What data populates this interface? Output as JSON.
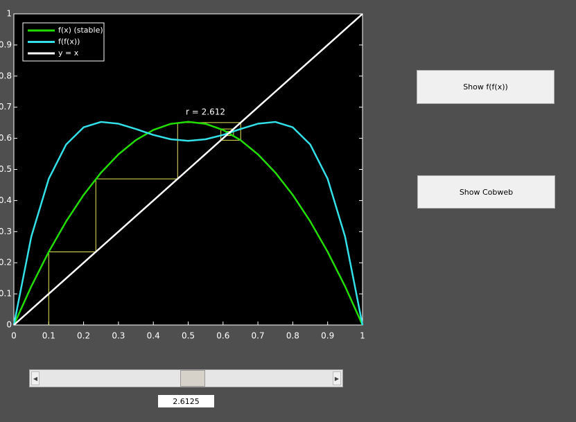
{
  "chart_data": {
    "type": "line",
    "annotation": "r = 2.612",
    "x": [
      0,
      0.05,
      0.1,
      0.15,
      0.2,
      0.25,
      0.3,
      0.35,
      0.4,
      0.45,
      0.5,
      0.55,
      0.6,
      0.65,
      0.7,
      0.75,
      0.8,
      0.85,
      0.9,
      0.95,
      1
    ],
    "series": [
      {
        "name": "f(x) (stable)",
        "color": "#22dd00",
        "values": [
          0,
          0.1241,
          0.2351,
          0.333,
          0.4179,
          0.4898,
          0.5485,
          0.5942,
          0.6269,
          0.6465,
          0.653,
          0.6465,
          0.6269,
          0.5942,
          0.5485,
          0.4898,
          0.4179,
          0.333,
          0.2351,
          0.1241,
          0
        ]
      },
      {
        "name": "f(f(x))",
        "color": "#33e0e8",
        "values": [
          0,
          0.2839,
          0.4697,
          0.5802,
          0.6354,
          0.6527,
          0.6469,
          0.6298,
          0.6109,
          0.5969,
          0.5919,
          0.5969,
          0.6109,
          0.6298,
          0.6469,
          0.6527,
          0.6354,
          0.5802,
          0.4697,
          0.2839,
          0
        ]
      },
      {
        "name": "y = x",
        "color": "#ffffff",
        "values": [
          0,
          0.05,
          0.1,
          0.15,
          0.2,
          0.25,
          0.3,
          0.35,
          0.4,
          0.45,
          0.5,
          0.55,
          0.6,
          0.65,
          0.7,
          0.75,
          0.8,
          0.85,
          0.9,
          0.95,
          1
        ]
      }
    ],
    "cobweb": {
      "color": "#e8e85a",
      "x": [
        0.1,
        0.1,
        0.2351,
        0.2351,
        0.4697,
        0.4697,
        0.6506,
        0.6506,
        0.5938,
        0.5938,
        0.63,
        0.63,
        0.6089,
        0.6089,
        0.622,
        0.622,
        0.6141,
        0.6141
      ],
      "y": [
        0,
        0.2351,
        0.2351,
        0.4697,
        0.4697,
        0.6506,
        0.6506,
        0.5938,
        0.5938,
        0.63,
        0.63,
        0.6089,
        0.6089,
        0.622,
        0.622,
        0.6141,
        0.6141,
        0.619
      ]
    },
    "xlim": [
      0,
      1
    ],
    "ylim": [
      0,
      1
    ],
    "xticks": [
      0,
      0.1,
      0.2,
      0.3,
      0.4,
      0.5,
      0.6,
      0.7,
      0.8,
      0.9,
      1
    ],
    "yticks": [
      0,
      0.1,
      0.2,
      0.3,
      0.4,
      0.5,
      0.6,
      0.7,
      0.8,
      0.9,
      1
    ],
    "legend": "upper left"
  },
  "controls": {
    "button_1": "Show f(f(x))",
    "button_2": "Show Cobweb",
    "slider_value": 2.6125
  }
}
